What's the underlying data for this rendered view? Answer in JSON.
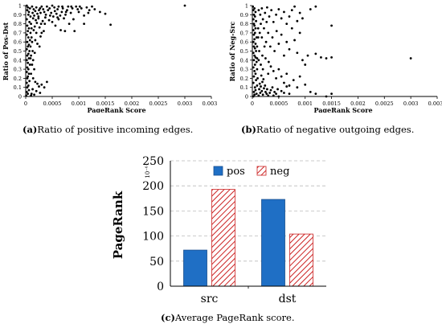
{
  "chart_data": [
    {
      "type": "scatter",
      "ylabel": "Ratio of Pos-Dst",
      "xlabel": "PageRank Score",
      "x_ticks": [
        "0",
        "0.0005",
        "0.001",
        "0.0015",
        "0.002",
        "0.0025",
        "0.003",
        "0.0035"
      ],
      "y_ticks": [
        "0",
        "0.1",
        "0.2",
        "0.3",
        "0.4",
        "0.5",
        "0.6",
        "0.7",
        "0.8",
        "0.9",
        "1"
      ],
      "xlim": [
        0,
        0.0035
      ],
      "ylim": [
        0,
        1
      ],
      "grid": false,
      "color": "#000000",
      "points": [
        [
          2e-05,
          1.0
        ],
        [
          4e-05,
          0.98
        ],
        [
          3e-05,
          0.95
        ],
        [
          6e-05,
          0.93
        ],
        [
          8e-05,
          0.97
        ],
        [
          5e-05,
          0.9
        ],
        [
          9e-05,
          0.88
        ],
        [
          2e-05,
          0.85
        ],
        [
          7e-05,
          0.82
        ],
        [
          0.0001,
          0.8
        ],
        [
          3e-05,
          0.78
        ],
        [
          6e-05,
          0.75
        ],
        [
          4e-05,
          0.72
        ],
        [
          9e-05,
          0.7
        ],
        [
          2e-05,
          0.68
        ],
        [
          5e-05,
          0.65
        ],
        [
          8e-05,
          0.62
        ],
        [
          3e-05,
          0.6
        ],
        [
          6e-05,
          0.57
        ],
        [
          4e-05,
          0.55
        ],
        [
          2e-05,
          0.52
        ],
        [
          7e-05,
          0.5
        ],
        [
          5e-05,
          0.47
        ],
        [
          3e-05,
          0.45
        ],
        [
          6e-05,
          0.42
        ],
        [
          2e-05,
          0.4
        ],
        [
          4e-05,
          0.37
        ],
        [
          8e-05,
          0.35
        ],
        [
          3e-05,
          0.32
        ],
        [
          5e-05,
          0.3
        ],
        [
          2e-05,
          0.27
        ],
        [
          6e-05,
          0.25
        ],
        [
          4e-05,
          0.22
        ],
        [
          3e-05,
          0.2
        ],
        [
          7e-05,
          0.17
        ],
        [
          2e-05,
          0.15
        ],
        [
          5e-05,
          0.12
        ],
        [
          3e-05,
          0.1
        ],
        [
          6e-05,
          0.07
        ],
        [
          2e-05,
          0.05
        ],
        [
          4e-05,
          0.03
        ],
        [
          1e-05,
          0.01
        ],
        [
          0.00012,
          0.99
        ],
        [
          0.00015,
          0.96
        ],
        [
          0.00013,
          0.92
        ],
        [
          0.00018,
          0.94
        ],
        [
          0.0002,
          0.98
        ],
        [
          0.00016,
          0.89
        ],
        [
          0.00022,
          0.91
        ],
        [
          0.00025,
          0.95
        ],
        [
          0.00014,
          0.86
        ],
        [
          0.00019,
          0.84
        ],
        [
          0.00027,
          0.97
        ],
        [
          0.0003,
          0.99
        ],
        [
          0.00024,
          0.88
        ],
        [
          0.00021,
          0.81
        ],
        [
          0.00017,
          0.77
        ],
        [
          0.00028,
          0.92
        ],
        [
          0.00033,
          0.96
        ],
        [
          0.00035,
          0.93
        ],
        [
          0.0004,
          0.99
        ],
        [
          0.00038,
          0.9
        ],
        [
          0.00042,
          0.95
        ],
        [
          0.00045,
          0.97
        ],
        [
          0.00048,
          0.92
        ],
        [
          0.0005,
          1.0
        ],
        [
          0.00052,
          0.88
        ],
        [
          0.00055,
          0.94
        ],
        [
          0.00058,
          0.91
        ],
        [
          0.0006,
          0.96
        ],
        [
          0.00062,
          0.99
        ],
        [
          0.00065,
          0.89
        ],
        [
          0.00068,
          0.93
        ],
        [
          0.0007,
          0.97
        ],
        [
          0.00072,
          0.86
        ],
        [
          0.00075,
          0.9
        ],
        [
          0.00078,
          0.95
        ],
        [
          0.0008,
          0.99
        ],
        [
          0.00085,
          0.92
        ],
        [
          0.00088,
          0.97
        ],
        [
          0.0009,
          0.85
        ],
        [
          0.00095,
          0.99
        ],
        [
          0.001,
          0.93
        ],
        [
          0.00105,
          0.97
        ],
        [
          0.0011,
          0.89
        ],
        [
          0.00115,
          0.98
        ],
        [
          0.0012,
          0.95
        ],
        [
          0.0013,
          0.96
        ],
        [
          0.0014,
          0.93
        ],
        [
          0.0015,
          0.91
        ],
        [
          0.0016,
          0.79
        ],
        [
          0.003,
          1.0
        ],
        [
          0.00032,
          0.83
        ],
        [
          0.00036,
          0.8
        ],
        [
          0.00044,
          0.84
        ],
        [
          0.0005,
          0.82
        ],
        [
          0.00056,
          0.78
        ],
        [
          0.00062,
          0.85
        ],
        [
          0.00066,
          0.73
        ],
        [
          0.00074,
          0.72
        ],
        [
          0.00082,
          0.8
        ],
        [
          0.00092,
          0.72
        ],
        [
          0.0011,
          0.8
        ],
        [
          0.00026,
          0.76
        ],
        [
          0.0003,
          0.7
        ],
        [
          0.00034,
          0.72
        ],
        [
          0.00028,
          0.66
        ],
        [
          0.0002,
          0.7
        ],
        [
          0.00015,
          0.73
        ],
        [
          0.00012,
          0.6
        ],
        [
          0.00018,
          0.62
        ],
        [
          0.00022,
          0.58
        ],
        [
          0.00026,
          0.55
        ],
        [
          0.00013,
          0.5
        ],
        [
          0.00017,
          0.48
        ],
        [
          0.0001,
          0.45
        ],
        [
          0.00014,
          0.4
        ],
        [
          0.00012,
          0.35
        ],
        [
          0.00016,
          0.3
        ],
        [
          0.0001,
          0.25
        ],
        [
          0.00014,
          0.2
        ],
        [
          0.00018,
          0.16
        ],
        [
          0.00022,
          0.14
        ],
        [
          0.00025,
          0.11
        ],
        [
          0.0003,
          0.13
        ],
        [
          0.00035,
          0.1
        ],
        [
          0.0004,
          0.16
        ],
        [
          0.00013,
          0.08
        ],
        [
          0.0002,
          0.06
        ],
        [
          0.00027,
          0.04
        ],
        [
          0.00011,
          0.03
        ],
        [
          0.00016,
          0.02
        ],
        [
          0.0001,
          0.01
        ],
        [
          9e-05,
          0.55
        ],
        [
          0.00011,
          0.65
        ],
        [
          0.00011,
          0.75
        ],
        [
          9e-05,
          0.42
        ],
        [
          0.00024,
          0.86
        ],
        [
          0.00029,
          0.8
        ],
        [
          0.00037,
          0.87
        ],
        [
          0.00046,
          0.89
        ],
        [
          0.00054,
          0.98
        ],
        [
          0.0006,
          0.87
        ],
        [
          0.00069,
          0.99
        ],
        [
          0.00076,
          0.93
        ],
        [
          0.00086,
          0.99
        ],
        [
          0.00098,
          0.96
        ],
        [
          0.00102,
          0.99
        ],
        [
          0.00118,
          0.92
        ],
        [
          0.00125,
          0.99
        ]
      ]
    },
    {
      "type": "scatter",
      "ylabel": "Ratio of Neg-Src",
      "xlabel": "PageRank Score",
      "x_ticks": [
        "0",
        "0.0005",
        "0.001",
        "0.0015",
        "0.002",
        "0.0025",
        "0.003",
        "0.0035"
      ],
      "y_ticks": [
        "0",
        "0.1",
        "0.2",
        "0.3",
        "0.4",
        "0.5",
        "0.6",
        "0.7",
        "0.8",
        "0.9",
        "1"
      ],
      "xlim": [
        0,
        0.0035
      ],
      "ylim": [
        0,
        1
      ],
      "grid": false,
      "color": "#000000",
      "points": [
        [
          2e-05,
          0.0
        ],
        [
          4e-05,
          0.02
        ],
        [
          3e-05,
          0.05
        ],
        [
          6e-05,
          0.07
        ],
        [
          8e-05,
          0.03
        ],
        [
          5e-05,
          0.1
        ],
        [
          9e-05,
          0.12
        ],
        [
          2e-05,
          0.15
        ],
        [
          7e-05,
          0.18
        ],
        [
          0.0001,
          0.2
        ],
        [
          3e-05,
          0.22
        ],
        [
          6e-05,
          0.25
        ],
        [
          4e-05,
          0.28
        ],
        [
          9e-05,
          0.3
        ],
        [
          2e-05,
          0.32
        ],
        [
          5e-05,
          0.35
        ],
        [
          8e-05,
          0.38
        ],
        [
          3e-05,
          0.4
        ],
        [
          6e-05,
          0.43
        ],
        [
          4e-05,
          0.45
        ],
        [
          2e-05,
          0.48
        ],
        [
          7e-05,
          0.5
        ],
        [
          5e-05,
          0.53
        ],
        [
          3e-05,
          0.55
        ],
        [
          6e-05,
          0.58
        ],
        [
          2e-05,
          0.6
        ],
        [
          4e-05,
          0.63
        ],
        [
          8e-05,
          0.65
        ],
        [
          3e-05,
          0.68
        ],
        [
          5e-05,
          0.7
        ],
        [
          2e-05,
          0.73
        ],
        [
          6e-05,
          0.75
        ],
        [
          4e-05,
          0.78
        ],
        [
          3e-05,
          0.8
        ],
        [
          7e-05,
          0.83
        ],
        [
          2e-05,
          0.85
        ],
        [
          5e-05,
          0.88
        ],
        [
          3e-05,
          0.9
        ],
        [
          6e-05,
          0.93
        ],
        [
          2e-05,
          0.95
        ],
        [
          4e-05,
          0.97
        ],
        [
          1e-05,
          0.99
        ],
        [
          0.00012,
          0.01
        ],
        [
          0.00015,
          0.04
        ],
        [
          0.00013,
          0.08
        ],
        [
          0.00018,
          0.06
        ],
        [
          0.0002,
          0.02
        ],
        [
          0.00016,
          0.11
        ],
        [
          0.00022,
          0.09
        ],
        [
          0.00025,
          0.05
        ],
        [
          0.00014,
          0.14
        ],
        [
          0.00019,
          0.16
        ],
        [
          0.00027,
          0.03
        ],
        [
          0.0003,
          0.01
        ],
        [
          0.00024,
          0.12
        ],
        [
          0.00021,
          0.19
        ],
        [
          0.00017,
          0.23
        ],
        [
          0.00028,
          0.08
        ],
        [
          0.00033,
          0.04
        ],
        [
          0.00035,
          0.07
        ],
        [
          0.0004,
          0.01
        ],
        [
          0.00038,
          0.1
        ],
        [
          0.00042,
          0.05
        ],
        [
          0.00045,
          0.03
        ],
        [
          0.00048,
          0.08
        ],
        [
          0.0005,
          0.0
        ],
        [
          0.00055,
          0.06
        ],
        [
          0.0006,
          0.04
        ],
        [
          0.00065,
          0.11
        ],
        [
          0.0007,
          0.03
        ],
        [
          0.00012,
          0.95
        ],
        [
          0.00015,
          0.9
        ],
        [
          0.00018,
          0.97
        ],
        [
          0.0002,
          0.85
        ],
        [
          0.00024,
          0.92
        ],
        [
          0.00028,
          0.98
        ],
        [
          0.00032,
          0.88
        ],
        [
          0.00036,
          0.95
        ],
        [
          0.0004,
          0.82
        ],
        [
          0.00045,
          0.9
        ],
        [
          0.0005,
          0.96
        ],
        [
          0.00055,
          0.86
        ],
        [
          0.0006,
          0.93
        ],
        [
          0.00065,
          0.8
        ],
        [
          0.0007,
          0.88
        ],
        [
          0.00075,
          0.95
        ],
        [
          0.0008,
          0.99
        ],
        [
          0.00085,
          0.83
        ],
        [
          0.0009,
          0.92
        ],
        [
          0.00095,
          0.86
        ],
        [
          0.0011,
          0.96
        ],
        [
          0.0012,
          0.99
        ],
        [
          0.0015,
          0.78
        ],
        [
          0.00014,
          0.7
        ],
        [
          0.00018,
          0.65
        ],
        [
          0.00022,
          0.75
        ],
        [
          0.00026,
          0.6
        ],
        [
          0.0003,
          0.7
        ],
        [
          0.00034,
          0.55
        ],
        [
          0.00038,
          0.65
        ],
        [
          0.00042,
          0.5
        ],
        [
          0.00046,
          0.72
        ],
        [
          0.0005,
          0.58
        ],
        [
          0.00055,
          0.68
        ],
        [
          0.0006,
          0.45
        ],
        [
          0.00065,
          0.6
        ],
        [
          0.0007,
          0.52
        ],
        [
          0.00075,
          0.75
        ],
        [
          0.0008,
          0.62
        ],
        [
          0.00085,
          0.48
        ],
        [
          0.0009,
          0.7
        ],
        [
          0.00095,
          0.4
        ],
        [
          0.001,
          0.35
        ],
        [
          0.00105,
          0.45
        ],
        [
          0.0012,
          0.47
        ],
        [
          0.0013,
          0.43
        ],
        [
          0.0014,
          0.42
        ],
        [
          0.0015,
          0.43
        ],
        [
          0.003,
          0.42
        ],
        [
          0.00012,
          0.4
        ],
        [
          0.00016,
          0.35
        ],
        [
          0.0002,
          0.3
        ],
        [
          0.00025,
          0.42
        ],
        [
          0.0003,
          0.25
        ],
        [
          0.00035,
          0.33
        ],
        [
          0.0004,
          0.28
        ],
        [
          0.00045,
          0.2
        ],
        [
          0.0005,
          0.3
        ],
        [
          0.00055,
          0.22
        ],
        [
          0.0006,
          0.15
        ],
        [
          0.00065,
          0.25
        ],
        [
          0.0007,
          0.12
        ],
        [
          0.00078,
          0.18
        ],
        [
          0.00085,
          0.1
        ],
        [
          0.0009,
          0.22
        ],
        [
          0.001,
          0.13
        ],
        [
          0.0011,
          0.05
        ],
        [
          0.0012,
          0.03
        ],
        [
          0.0014,
          0.0
        ],
        [
          0.0015,
          0.03
        ],
        [
          9e-05,
          0.55
        ],
        [
          0.00011,
          0.65
        ],
        [
          0.00011,
          0.75
        ],
        [
          9e-05,
          0.42
        ],
        [
          0.00013,
          0.5
        ],
        [
          0.00016,
          0.8
        ],
        [
          0.00019,
          0.45
        ],
        [
          0.00023,
          0.55
        ],
        [
          0.00027,
          0.82
        ],
        [
          0.00031,
          0.38
        ]
      ]
    },
    {
      "type": "bar",
      "ylabel": "PageRank",
      "y_unit": "10⁻⁶",
      "categories": [
        "src",
        "dst"
      ],
      "series": [
        {
          "name": "pos",
          "values": [
            72,
            173
          ],
          "color": "#1f6fc5",
          "pattern": "solid"
        },
        {
          "name": "neg",
          "values": [
            193,
            104
          ],
          "color": "#cc2222",
          "pattern": "hatch"
        }
      ],
      "y_ticks": [
        "0",
        "50",
        "100",
        "150",
        "200",
        "250"
      ],
      "ylim": [
        0,
        250
      ],
      "grid": true,
      "legend": "top"
    }
  ],
  "captions": {
    "a_letter": "(a)",
    "a_text": "Ratio of positive incoming edges.",
    "b_letter": "(b)",
    "b_text": "Ratio of negative outgoing edges.",
    "c_letter": "(c)",
    "c_text": "Average PageRank score."
  }
}
